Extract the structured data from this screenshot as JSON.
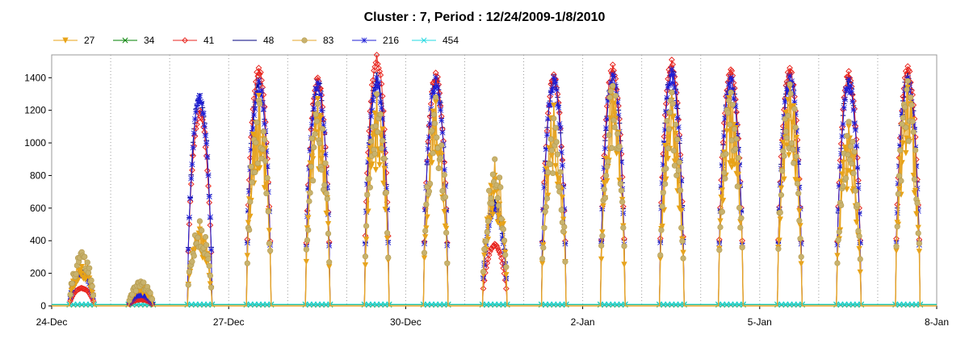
{
  "chart_data": {
    "type": "line",
    "title": "Cluster : 7, Period : 12/24/2009-1/8/2010",
    "xlabel": "",
    "ylabel": "",
    "x_range_days": [
      0,
      15
    ],
    "ylim": [
      0,
      1540
    ],
    "y_ticks": [
      0,
      200,
      400,
      600,
      800,
      1000,
      1200,
      1400
    ],
    "x_ticks": [
      {
        "day": 0,
        "label": "24-Dec"
      },
      {
        "day": 3,
        "label": "27-Dec"
      },
      {
        "day": 6,
        "label": "30-Dec"
      },
      {
        "day": 9,
        "label": "2-Jan"
      },
      {
        "day": 12,
        "label": "5-Jan"
      },
      {
        "day": 15,
        "label": "8-Jan"
      }
    ],
    "grid": "vertical dotted, every day",
    "legend_position": "top-left",
    "legend": [
      {
        "name": "27",
        "color": "#e8a317",
        "marker": "triangle-down"
      },
      {
        "name": "34",
        "color": "#008000",
        "marker": "x"
      },
      {
        "name": "41",
        "color": "#e8261f",
        "marker": "diamond"
      },
      {
        "name": "48",
        "color": "#00007f",
        "marker": "line"
      },
      {
        "name": "83",
        "color": "#d2b56a",
        "marker": "circle"
      },
      {
        "name": "216",
        "color": "#1f1fd6",
        "marker": "star"
      },
      {
        "name": "454",
        "color": "#20d8e0",
        "marker": "x"
      }
    ],
    "daily_peaks": [
      {
        "day": "24-Dec",
        "s41": 110,
        "s48": 220,
        "s83": 330,
        "s216": 200,
        "s27": 240
      },
      {
        "day": "25-Dec",
        "s41": 40,
        "s48": 80,
        "s83": 150,
        "s216": 70,
        "s27": 120
      },
      {
        "day": "26-Dec",
        "s41": 1200,
        "s48": 1300,
        "s83": 520,
        "s216": 1290,
        "s27": 470
      },
      {
        "day": "27-Dec",
        "s41": 1460,
        "s48": 1400,
        "s83": 1260,
        "s216": 1380,
        "s27": 1290
      },
      {
        "day": "28-Dec",
        "s41": 1400,
        "s48": 1390,
        "s83": 1240,
        "s216": 1370,
        "s27": 1270
      },
      {
        "day": "29-Dec",
        "s41": 1540,
        "s48": 1430,
        "s83": 1300,
        "s216": 1400,
        "s27": 1290
      },
      {
        "day": "30-Dec",
        "s41": 1430,
        "s48": 1420,
        "s83": 1280,
        "s216": 1400,
        "s27": 1250
      },
      {
        "day": "31-Dec",
        "s41": 380,
        "s48": 650,
        "s83": 900,
        "s216": 620,
        "s27": 800
      },
      {
        "day": "1-Jan",
        "s41": 1420,
        "s48": 1420,
        "s83": 1150,
        "s216": 1400,
        "s27": 1230
      },
      {
        "day": "2-Jan",
        "s41": 1480,
        "s48": 1440,
        "s83": 1350,
        "s216": 1420,
        "s27": 1330
      },
      {
        "day": "3-Jan",
        "s41": 1510,
        "s48": 1470,
        "s83": 1310,
        "s216": 1450,
        "s27": 1260
      },
      {
        "day": "4-Jan",
        "s41": 1450,
        "s48": 1420,
        "s83": 1310,
        "s216": 1400,
        "s27": 1300
      },
      {
        "day": "5-Jan",
        "s41": 1460,
        "s48": 1430,
        "s83": 1360,
        "s216": 1410,
        "s27": 1340
      },
      {
        "day": "6-Jan",
        "s41": 1440,
        "s48": 1400,
        "s83": 1130,
        "s216": 1390,
        "s27": 1100
      },
      {
        "day": "7-Jan",
        "s41": 1470,
        "s48": 1430,
        "s83": 1380,
        "s216": 1400,
        "s27": 1340
      }
    ],
    "flat_series_level": {
      "s34": 8,
      "s454": 10
    }
  }
}
